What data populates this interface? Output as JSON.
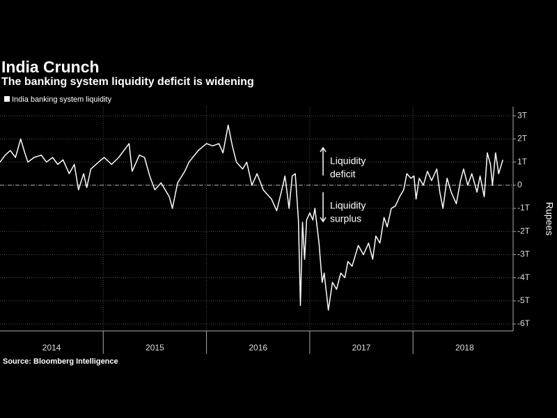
{
  "chart_data": {
    "type": "line",
    "title": "India Crunch",
    "subtitle": "The banking system liquidity deficit is widening",
    "y_axis_label": "Rupees",
    "source": "Source: Bloomberg Intelligence",
    "annotations": [
      {
        "lines": [
          "Liquidity",
          "deficit"
        ],
        "arrow": "up"
      },
      {
        "lines": [
          "Liquidity",
          "surplus"
        ],
        "arrow": "down"
      }
    ],
    "xlim": [
      2014,
      2018.97
    ],
    "xticks": [
      {
        "value": 2014.5,
        "label": "2014"
      },
      {
        "value": 2015.5,
        "label": "2015"
      },
      {
        "value": 2016.5,
        "label": "2016"
      },
      {
        "value": 2017.5,
        "label": "2017"
      },
      {
        "value": 2018.5,
        "label": "2018"
      }
    ],
    "x_gridlines": [
      2015,
      2016,
      2017,
      2018
    ],
    "ylim": [
      -6.3,
      3.4
    ],
    "yticks": [
      {
        "value": 3,
        "label": "3T"
      },
      {
        "value": 2,
        "label": "2T"
      },
      {
        "value": 1,
        "label": "1T"
      },
      0,
      {
        "value": -1,
        "label": "-1T"
      },
      {
        "value": -2,
        "label": "-2T"
      },
      {
        "value": -3,
        "label": "-3T"
      },
      {
        "value": -4,
        "label": "-4T"
      },
      {
        "value": -5,
        "label": "-5T"
      },
      {
        "value": -6,
        "label": "-6T"
      }
    ],
    "grid": true,
    "legend": "top-left",
    "series": [
      {
        "name": "India banking system liquidity",
        "color": "#ffffff",
        "x": [
          2014.0,
          2014.05,
          2014.1,
          2014.15,
          2014.2,
          2014.24,
          2014.27,
          2014.33,
          2014.4,
          2014.45,
          2014.51,
          2014.56,
          2014.61,
          2014.67,
          2014.72,
          2014.76,
          2014.81,
          2014.84,
          2014.88,
          2014.98,
          2015.01,
          2015.08,
          2015.15,
          2015.25,
          2015.28,
          2015.35,
          2015.4,
          2015.45,
          2015.5,
          2015.56,
          2015.64,
          2015.67,
          2015.72,
          2015.79,
          2015.83,
          2015.92,
          2016.0,
          2016.06,
          2016.12,
          2016.16,
          2016.21,
          2016.25,
          2016.29,
          2016.35,
          2016.39,
          2016.44,
          2016.49,
          2016.55,
          2016.63,
          2016.68,
          2016.73,
          2016.76,
          2016.8,
          2016.83,
          2016.86,
          2016.89,
          2016.91,
          2016.93,
          2016.95,
          2016.97,
          2017.0,
          2017.03,
          2017.05,
          2017.09,
          2017.12,
          2017.14,
          2017.18,
          2017.22,
          2017.26,
          2017.3,
          2017.34,
          2017.37,
          2017.41,
          2017.47,
          2017.52,
          2017.57,
          2017.61,
          2017.64,
          2017.68,
          2017.72,
          2017.75,
          2017.79,
          2017.83,
          2017.87,
          2017.91,
          2017.94,
          2017.98,
          2018.01,
          2018.03,
          2018.06,
          2018.1,
          2018.14,
          2018.18,
          2018.23,
          2018.26,
          2018.29,
          2018.33,
          2018.37,
          2018.42,
          2018.46,
          2018.49,
          2018.53,
          2018.57,
          2018.62,
          2018.65,
          2018.69,
          2018.72,
          2018.75,
          2018.77,
          2018.8,
          2018.83,
          2018.87
        ],
        "values": [
          1.0,
          1.3,
          1.5,
          1.2,
          2.0,
          1.4,
          1.0,
          1.2,
          1.3,
          1.0,
          1.2,
          0.9,
          1.1,
          0.5,
          0.9,
          -0.2,
          0.5,
          -0.1,
          0.7,
          1.1,
          1.2,
          0.9,
          1.2,
          1.8,
          0.6,
          1.3,
          1.2,
          0.4,
          -0.2,
          0.1,
          -0.5,
          -1.0,
          0.1,
          0.6,
          1.0,
          1.5,
          1.8,
          1.7,
          1.8,
          1.4,
          2.6,
          1.7,
          1.0,
          0.7,
          1.0,
          0.0,
          0.5,
          -0.2,
          -0.6,
          -1.1,
          -0.2,
          0.4,
          -1.0,
          0.4,
          0.5,
          -1.5,
          -5.2,
          -1.6,
          -3.2,
          -1.5,
          -1.2,
          -1.5,
          -1.0,
          -2.5,
          -4.2,
          -3.8,
          -5.4,
          -4.2,
          -4.5,
          -3.8,
          -4.0,
          -3.3,
          -3.5,
          -2.6,
          -3.0,
          -2.5,
          -3.2,
          -2.2,
          -2.5,
          -1.4,
          -1.8,
          -1.0,
          -0.9,
          -0.5,
          -0.2,
          0.5,
          0.3,
          0.4,
          -0.6,
          0.3,
          0.0,
          0.6,
          0.2,
          0.7,
          -0.3,
          -1.0,
          0.3,
          -0.3,
          -0.8,
          0.2,
          0.7,
          0.0,
          0.5,
          -0.3,
          0.4,
          -0.5,
          1.4,
          0.9,
          0.0,
          1.4,
          0.5,
          1.1
        ]
      }
    ]
  }
}
